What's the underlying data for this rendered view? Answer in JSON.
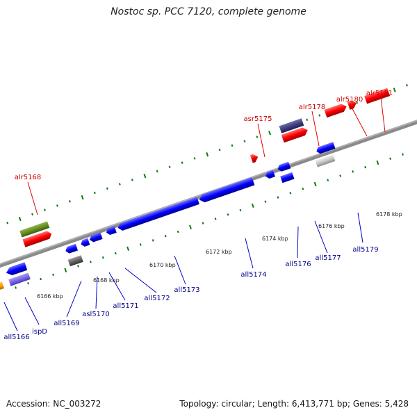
{
  "title": "Nostoc sp. PCC 7120, complete genome",
  "accession": "Accession: NC_003272",
  "summary": "Topology: circular; Length: 6,413,771 bp; Genes: 5,428",
  "ticks": [
    "6166 kbp",
    "6168 kbp",
    "6170 kbp",
    "6172 kbp",
    "6174 kbp",
    "6176 kbp",
    "6178 kbp"
  ],
  "genes_forward": [
    "alr5168",
    "asr5175",
    "alr5178",
    "alr5180",
    "alr5181"
  ],
  "genes_reverse": [
    "all5166",
    "ispD",
    "all5169",
    "asl5170",
    "all5171",
    "all5172",
    "all5173",
    "all5174",
    "all5176",
    "all5177",
    "all5179"
  ],
  "colors": {
    "forward_label": "#cc0000",
    "reverse_label": "#00008b",
    "tick": "#006400",
    "backbone": "#808080"
  }
}
